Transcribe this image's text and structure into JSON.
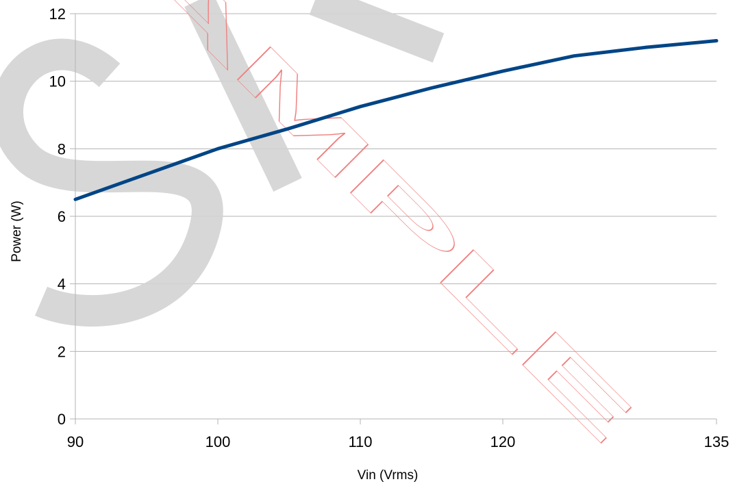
{
  "chart_data": {
    "type": "line",
    "title": "",
    "xlabel": "Vin (Vrms)",
    "ylabel": "Power (W)",
    "xlim": [
      90,
      135
    ],
    "ylim": [
      0,
      12
    ],
    "x_ticks": [
      90,
      100,
      110,
      120,
      135
    ],
    "y_ticks": [
      0,
      2,
      4,
      6,
      8,
      10,
      12
    ],
    "grid": "horizontal",
    "x_scale": "linear",
    "series": [
      {
        "color": "#004586",
        "x": [
          90,
          95,
          100,
          105,
          110,
          115,
          120,
          125,
          130,
          135
        ],
        "y": [
          6.5,
          7.25,
          8.0,
          8.6,
          9.25,
          9.8,
          10.3,
          10.75,
          11.0,
          11.2
        ]
      }
    ]
  },
  "watermark": {
    "text": "SAMPLE",
    "colors": [
      "#d3d3d3",
      "#f08080"
    ]
  }
}
